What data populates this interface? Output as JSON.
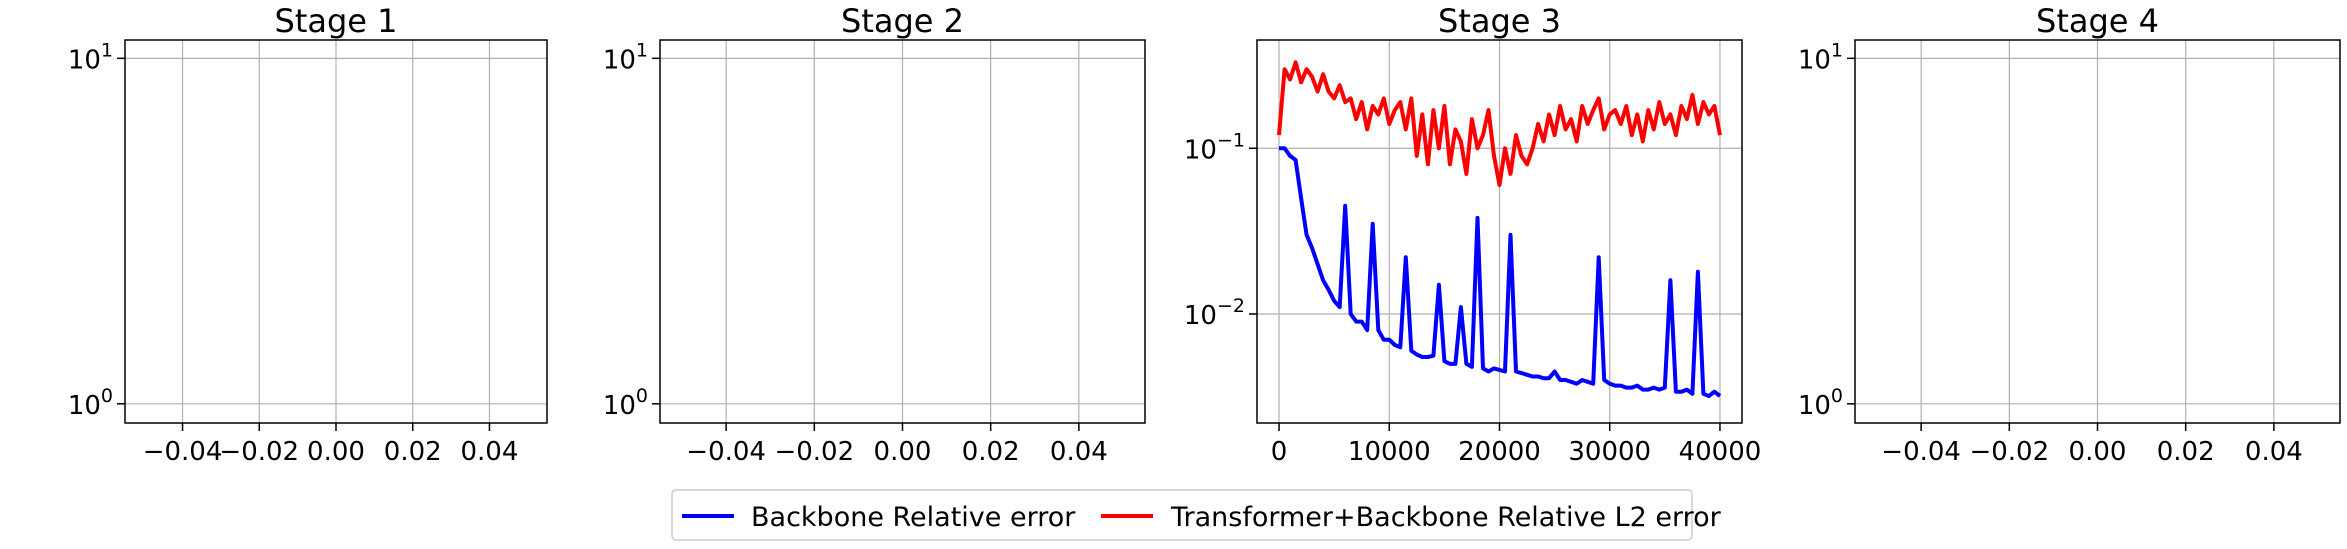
{
  "chart_data": [
    {
      "type": "line",
      "title": "Stage 1",
      "xlabel": "",
      "ylabel": "",
      "yscale": "log",
      "ylim": [
        0.88,
        11.3
      ],
      "xlim": [
        -0.055,
        0.055
      ],
      "xticks": [
        "−0.04",
        "−0.02",
        "0.00",
        "0.02",
        "0.04"
      ],
      "xtick_values": [
        -0.04,
        -0.02,
        0.0,
        0.02,
        0.04
      ],
      "yticks": [
        {
          "base": "10",
          "exp": "1",
          "value": 10
        },
        {
          "base": "10",
          "exp": "0",
          "value": 1
        }
      ],
      "grid": true,
      "series": []
    },
    {
      "type": "line",
      "title": "Stage 2",
      "xlabel": "",
      "ylabel": "",
      "yscale": "log",
      "ylim": [
        0.88,
        11.3
      ],
      "xlim": [
        -0.055,
        0.055
      ],
      "xticks": [
        "−0.04",
        "−0.02",
        "0.00",
        "0.02",
        "0.04"
      ],
      "xtick_values": [
        -0.04,
        -0.02,
        0.0,
        0.02,
        0.04
      ],
      "yticks": [
        {
          "base": "10",
          "exp": "1",
          "value": 10
        },
        {
          "base": "10",
          "exp": "0",
          "value": 1
        }
      ],
      "grid": true,
      "series": []
    },
    {
      "type": "line",
      "title": "Stage 3",
      "xlabel": "",
      "ylabel": "",
      "yscale": "log",
      "ylim": [
        0.0022,
        0.45
      ],
      "xlim": [
        -2000,
        42000
      ],
      "xticks": [
        "0",
        "10000",
        "20000",
        "30000",
        "40000"
      ],
      "xtick_values": [
        0,
        10000,
        20000,
        30000,
        40000
      ],
      "yticks": [
        {
          "base": "10",
          "exp": "−1",
          "value": 0.1
        },
        {
          "base": "10",
          "exp": "−2",
          "value": 0.01
        }
      ],
      "grid": true,
      "series": [
        {
          "name": "Backbone Relative error",
          "color": "#0000ff",
          "x": [
            0,
            500,
            1000,
            1500,
            2000,
            2500,
            3000,
            3500,
            4000,
            4500,
            5000,
            5500,
            6000,
            6500,
            7000,
            7500,
            8000,
            8500,
            9000,
            9500,
            10000,
            10500,
            11000,
            11500,
            12000,
            12500,
            13000,
            13500,
            14000,
            14500,
            15000,
            15500,
            16000,
            16500,
            17000,
            17500,
            18000,
            18500,
            19000,
            19500,
            20000,
            20500,
            21000,
            21500,
            22000,
            22500,
            23000,
            23500,
            24000,
            24500,
            25000,
            25500,
            26000,
            26500,
            27000,
            27500,
            28000,
            28500,
            29000,
            29500,
            30000,
            30500,
            31000,
            31500,
            32000,
            32500,
            33000,
            33500,
            34000,
            34500,
            35000,
            35500,
            36000,
            36500,
            37000,
            37500,
            38000,
            38500,
            39000,
            39500,
            40000
          ],
          "y": [
            0.1,
            0.1,
            0.09,
            0.085,
            0.05,
            0.03,
            0.025,
            0.02,
            0.016,
            0.014,
            0.012,
            0.011,
            0.045,
            0.01,
            0.009,
            0.009,
            0.008,
            0.035,
            0.008,
            0.007,
            0.007,
            0.0065,
            0.0063,
            0.022,
            0.006,
            0.0057,
            0.0055,
            0.0055,
            0.0056,
            0.015,
            0.0052,
            0.005,
            0.005,
            0.011,
            0.005,
            0.0048,
            0.038,
            0.0047,
            0.0045,
            0.0047,
            0.0046,
            0.0045,
            0.03,
            0.0045,
            0.0044,
            0.0043,
            0.0042,
            0.0042,
            0.0041,
            0.0041,
            0.0045,
            0.004,
            0.004,
            0.0039,
            0.0038,
            0.004,
            0.0039,
            0.0038,
            0.022,
            0.004,
            0.0038,
            0.0037,
            0.0037,
            0.0036,
            0.0036,
            0.0037,
            0.0035,
            0.0035,
            0.0036,
            0.0035,
            0.0036,
            0.016,
            0.0034,
            0.0034,
            0.0035,
            0.0033,
            0.018,
            0.0033,
            0.0032,
            0.0034,
            0.0032
          ]
        },
        {
          "name": "Transformer+Backbone Relative L2 error",
          "color": "#ff0000",
          "x": [
            0,
            500,
            1000,
            1500,
            2000,
            2500,
            3000,
            3500,
            4000,
            4500,
            5000,
            5500,
            6000,
            6500,
            7000,
            7500,
            8000,
            8500,
            9000,
            9500,
            10000,
            10500,
            11000,
            11500,
            12000,
            12500,
            13000,
            13500,
            14000,
            14500,
            15000,
            15500,
            16000,
            16500,
            17000,
            17500,
            18000,
            18500,
            19000,
            19500,
            20000,
            20500,
            21000,
            21500,
            22000,
            22500,
            23000,
            23500,
            24000,
            24500,
            25000,
            25500,
            26000,
            26500,
            27000,
            27500,
            28000,
            28500,
            29000,
            29500,
            30000,
            30500,
            31000,
            31500,
            32000,
            32500,
            33000,
            33500,
            34000,
            34500,
            35000,
            35500,
            36000,
            36500,
            37000,
            37500,
            38000,
            38500,
            39000,
            39500,
            40000
          ],
          "y": [
            0.12,
            0.3,
            0.26,
            0.33,
            0.25,
            0.3,
            0.27,
            0.22,
            0.28,
            0.22,
            0.2,
            0.24,
            0.19,
            0.2,
            0.15,
            0.19,
            0.13,
            0.18,
            0.16,
            0.2,
            0.14,
            0.17,
            0.19,
            0.13,
            0.2,
            0.09,
            0.16,
            0.08,
            0.17,
            0.1,
            0.18,
            0.08,
            0.13,
            0.11,
            0.07,
            0.15,
            0.1,
            0.12,
            0.17,
            0.09,
            0.06,
            0.1,
            0.07,
            0.12,
            0.09,
            0.08,
            0.1,
            0.14,
            0.11,
            0.16,
            0.12,
            0.18,
            0.13,
            0.15,
            0.11,
            0.18,
            0.14,
            0.17,
            0.2,
            0.13,
            0.16,
            0.17,
            0.14,
            0.18,
            0.12,
            0.16,
            0.11,
            0.17,
            0.13,
            0.19,
            0.14,
            0.16,
            0.12,
            0.18,
            0.15,
            0.21,
            0.14,
            0.19,
            0.16,
            0.18,
            0.12
          ]
        }
      ]
    },
    {
      "type": "line",
      "title": "Stage 4",
      "xlabel": "",
      "ylabel": "",
      "yscale": "log",
      "ylim": [
        0.88,
        11.3
      ],
      "xlim": [
        -0.055,
        0.055
      ],
      "xticks": [
        "−0.04",
        "−0.02",
        "0.00",
        "0.02",
        "0.04"
      ],
      "xtick_values": [
        -0.04,
        -0.02,
        0.0,
        0.02,
        0.04
      ],
      "yticks": [
        {
          "base": "10",
          "exp": "1",
          "value": 10
        },
        {
          "base": "10",
          "exp": "0",
          "value": 1
        }
      ],
      "grid": true,
      "series": []
    }
  ],
  "legend": {
    "position": "bottom-center",
    "items": [
      {
        "label": "Backbone Relative error",
        "color": "#0000ff"
      },
      {
        "label": "Transformer+Backbone Relative L2 error",
        "color": "#ff0000"
      }
    ]
  }
}
